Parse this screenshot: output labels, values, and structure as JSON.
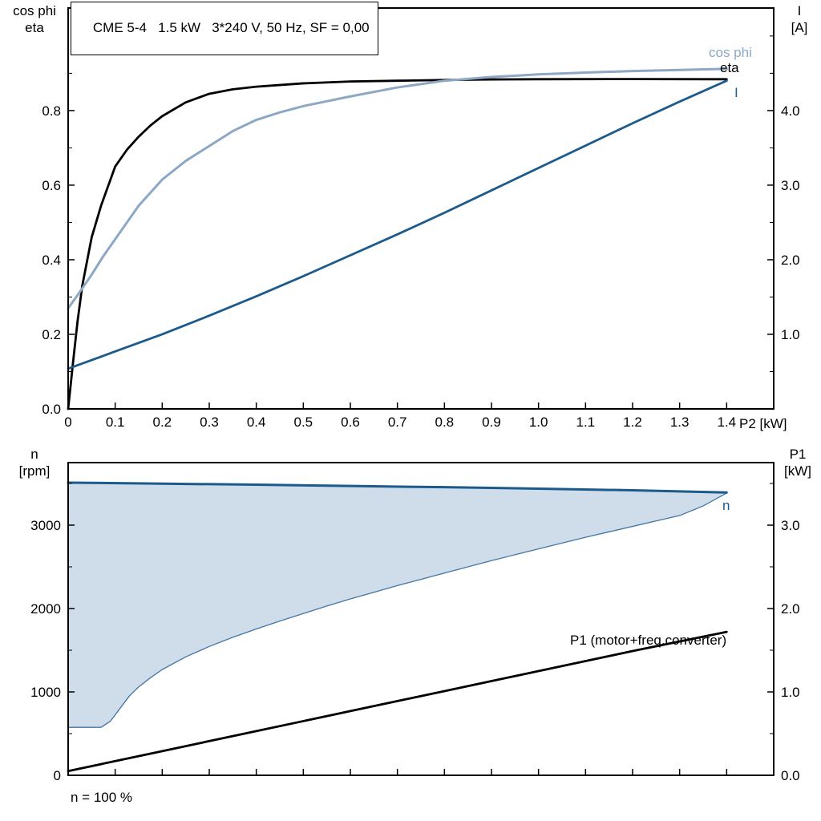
{
  "title_box": "CME 5-4   1.5 kW   3*240 V, 50 Hz, SF = 0,00",
  "colors": {
    "black": "#000000",
    "dark_blue": "#1C5A8C",
    "light_blue": "#8CA8C4",
    "fill_blue": "#CFDCEA",
    "boundary_blue": "#4476A4"
  },
  "axis_titles": {
    "top_left_line1": "cos phi",
    "top_left_line2": "eta",
    "top_right_line1": "I",
    "top_right_line2": "[A]",
    "bottom_left_line1": "n",
    "bottom_left_line2": "[rpm]",
    "bottom_right_line1": "P1",
    "bottom_right_line2": "[kW]",
    "x_axis_label": "P2 [kW]"
  },
  "annotations": {
    "cos_phi_label": "cos phi",
    "eta_label": "eta",
    "current_label": "I",
    "speed_label": "n",
    "p1_label": "P1 (motor+freq.converter)",
    "footnote": "n = 100 %"
  },
  "chart_data": [
    {
      "type": "line",
      "title": "CME 5-4  1.5 kW  3*240 V, 50 Hz, SF = 0,00",
      "xlabel": "P2 [kW]",
      "ylabel_left": "cos phi / eta",
      "ylabel_right": "I [A]",
      "xlim": [
        0,
        1.5
      ],
      "ylim_left": [
        0,
        1.075
      ],
      "ylim_right": [
        0,
        5.375
      ],
      "grid": false,
      "xticks": {
        "values": [
          0,
          0.1,
          0.2,
          0.3,
          0.4,
          0.5,
          0.6,
          0.7,
          0.8,
          0.9,
          1.0,
          1.1,
          1.2,
          1.3,
          1.4
        ],
        "labels": [
          "0",
          "0.1",
          "0.2",
          "0.3",
          "0.4",
          "0.5",
          "0.6",
          "0.7",
          "0.8",
          "0.9",
          "1.0",
          "1.1",
          "1.2",
          "1.3",
          "1.4"
        ]
      },
      "yticks_left": {
        "values": [
          0,
          0.2,
          0.4,
          0.6,
          0.8
        ],
        "labels": [
          "0.0",
          "0.2",
          "0.4",
          "0.6",
          "0.8"
        ]
      },
      "yminor_left": [
        0.1,
        0.3,
        0.5,
        0.7,
        0.9
      ],
      "yticks_right": {
        "values": [
          1,
          2,
          3,
          4
        ],
        "labels": [
          "1.0",
          "2.0",
          "3.0",
          "4.0"
        ]
      },
      "yminor_right": [
        0.5,
        1.5,
        2.5,
        3.5,
        4.5,
        5.0
      ],
      "series": [
        {
          "name": "eta",
          "axis": "left",
          "color_key": "black",
          "width": 2.8,
          "x": [
            0,
            0.01,
            0.02,
            0.03,
            0.05,
            0.07,
            0.1,
            0.125,
            0.15,
            0.175,
            0.2,
            0.25,
            0.3,
            0.35,
            0.4,
            0.5,
            0.6,
            0.7,
            0.8,
            0.9,
            1.0,
            1.2,
            1.4
          ],
          "y": [
            0,
            0.12,
            0.235,
            0.33,
            0.46,
            0.545,
            0.65,
            0.695,
            0.73,
            0.76,
            0.785,
            0.822,
            0.845,
            0.857,
            0.864,
            0.873,
            0.878,
            0.88,
            0.882,
            0.8835,
            0.884,
            0.8845,
            0.884
          ]
        },
        {
          "name": "cos phi",
          "axis": "left",
          "color_key": "light_blue",
          "width": 3,
          "x": [
            0,
            0.02,
            0.05,
            0.075,
            0.1,
            0.125,
            0.15,
            0.175,
            0.2,
            0.25,
            0.3,
            0.35,
            0.4,
            0.45,
            0.5,
            0.6,
            0.7,
            0.8,
            0.9,
            1.0,
            1.1,
            1.2,
            1.3,
            1.4
          ],
          "y": [
            0.27,
            0.305,
            0.36,
            0.41,
            0.455,
            0.5,
            0.545,
            0.58,
            0.615,
            0.665,
            0.705,
            0.745,
            0.775,
            0.795,
            0.812,
            0.838,
            0.862,
            0.88,
            0.89,
            0.897,
            0.902,
            0.906,
            0.909,
            0.912
          ]
        },
        {
          "name": "I",
          "axis": "right",
          "color_key": "dark_blue",
          "width": 2.8,
          "x": [
            0,
            0.1,
            0.2,
            0.3,
            0.4,
            0.5,
            0.6,
            0.7,
            0.8,
            0.9,
            1.0,
            1.1,
            1.2,
            1.3,
            1.4
          ],
          "y": [
            0.54,
            0.77,
            1.0,
            1.25,
            1.51,
            1.78,
            2.06,
            2.34,
            2.63,
            2.93,
            3.23,
            3.53,
            3.83,
            4.12,
            4.4
          ]
        }
      ]
    },
    {
      "type": "line",
      "title": "",
      "xlabel": "",
      "ylabel_left": "n [rpm]",
      "ylabel_right": "P1 [kW]",
      "xlim": [
        0,
        1.5
      ],
      "ylim_left": [
        0,
        3750
      ],
      "ylim_right": [
        0,
        3.75
      ],
      "grid": false,
      "xticks": {
        "values": [
          0,
          0.1,
          0.2,
          0.3,
          0.4,
          0.5,
          0.6,
          0.7,
          0.8,
          0.9,
          1.0,
          1.1,
          1.2,
          1.3,
          1.4
        ],
        "labels": null
      },
      "yticks_left": {
        "values": [
          0,
          1000,
          2000,
          3000
        ],
        "labels": [
          "0",
          "1000",
          "2000",
          "3000"
        ]
      },
      "yminor_left": [
        500,
        1500,
        2500,
        3500
      ],
      "yticks_right": {
        "values": [
          0,
          1,
          2,
          3
        ],
        "labels": [
          "0.0",
          "1.0",
          "2.0",
          "3.0"
        ]
      },
      "yminor_right": [
        0.5,
        1.5,
        2.5,
        3.5
      ],
      "fill_between": {
        "upper": "n",
        "lower": "n min",
        "color_key": "fill_blue"
      },
      "series": [
        {
          "name": "n min",
          "axis": "left",
          "color_key": "boundary_blue",
          "width": 1.3,
          "x": [
            0,
            0.07,
            0.09,
            0.11,
            0.13,
            0.15,
            0.175,
            0.2,
            0.25,
            0.3,
            0.35,
            0.4,
            0.45,
            0.5,
            0.55,
            0.6,
            0.65,
            0.7,
            0.75,
            0.8,
            0.85,
            0.9,
            0.95,
            1.0,
            1.05,
            1.1,
            1.15,
            1.2,
            1.25,
            1.3,
            1.35,
            1.4
          ],
          "y": [
            575,
            575,
            650,
            800,
            950,
            1060,
            1170,
            1268,
            1420,
            1545,
            1655,
            1755,
            1850,
            1940,
            2030,
            2115,
            2195,
            2275,
            2350,
            2425,
            2500,
            2575,
            2645,
            2715,
            2785,
            2855,
            2920,
            2985,
            3050,
            3115,
            3230,
            3385
          ]
        },
        {
          "name": "n",
          "axis": "left",
          "color_key": "dark_blue",
          "width": 3,
          "x": [
            0,
            0.2,
            0.4,
            0.6,
            0.8,
            1.0,
            1.2,
            1.4
          ],
          "y": [
            3510,
            3498,
            3485,
            3470,
            3455,
            3438,
            3418,
            3392
          ]
        },
        {
          "name": "P1",
          "axis": "right",
          "color_key": "black",
          "width": 2.8,
          "x": [
            0,
            0.2,
            0.4,
            0.6,
            0.8,
            1.0,
            1.2,
            1.4
          ],
          "y": [
            0.05,
            0.29,
            0.53,
            0.77,
            1.01,
            1.25,
            1.49,
            1.72
          ]
        }
      ]
    }
  ]
}
